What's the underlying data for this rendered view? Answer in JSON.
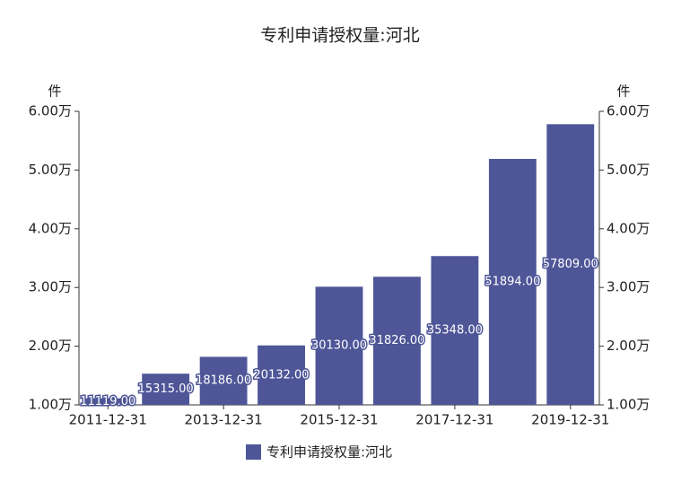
{
  "chart_data": {
    "type": "bar",
    "title": "专利申请授权量:河北",
    "y_label": "件",
    "y2_label": "件",
    "categories": [
      "2011-12-31",
      null,
      "2013-12-31",
      null,
      "2015-12-31",
      null,
      "2017-12-31",
      null,
      "2019-12-31"
    ],
    "series": [
      {
        "name": "专利申请授权量:河北",
        "color": "#4e5698",
        "values": [
          11119,
          15315,
          18186,
          20132,
          30130,
          31826,
          35348,
          51894,
          57809
        ],
        "value_labels": [
          "11119.00",
          "15315.00",
          "18186.00",
          "20132.00",
          "30130.00",
          "31826.00",
          "35348.00",
          "51894.00",
          "57809.00"
        ]
      }
    ],
    "ylim": [
      10000,
      60000
    ],
    "yticks": [
      {
        "value": 10000,
        "label": "1.00万"
      },
      {
        "value": 20000,
        "label": "2.00万"
      },
      {
        "value": 30000,
        "label": "3.00万"
      },
      {
        "value": 40000,
        "label": "4.00万"
      },
      {
        "value": 50000,
        "label": "5.00万"
      },
      {
        "value": 60000,
        "label": "6.00万"
      }
    ],
    "y2lim": [
      10000,
      60000
    ],
    "y2ticks": [
      {
        "value": 10000,
        "label": "1.00万"
      },
      {
        "value": 20000,
        "label": "2.00万"
      },
      {
        "value": 30000,
        "label": "3.00万"
      },
      {
        "value": 40000,
        "label": "4.00万"
      },
      {
        "value": 50000,
        "label": "5.00万"
      },
      {
        "value": 60000,
        "label": "6.00万"
      }
    ],
    "grid": false
  }
}
